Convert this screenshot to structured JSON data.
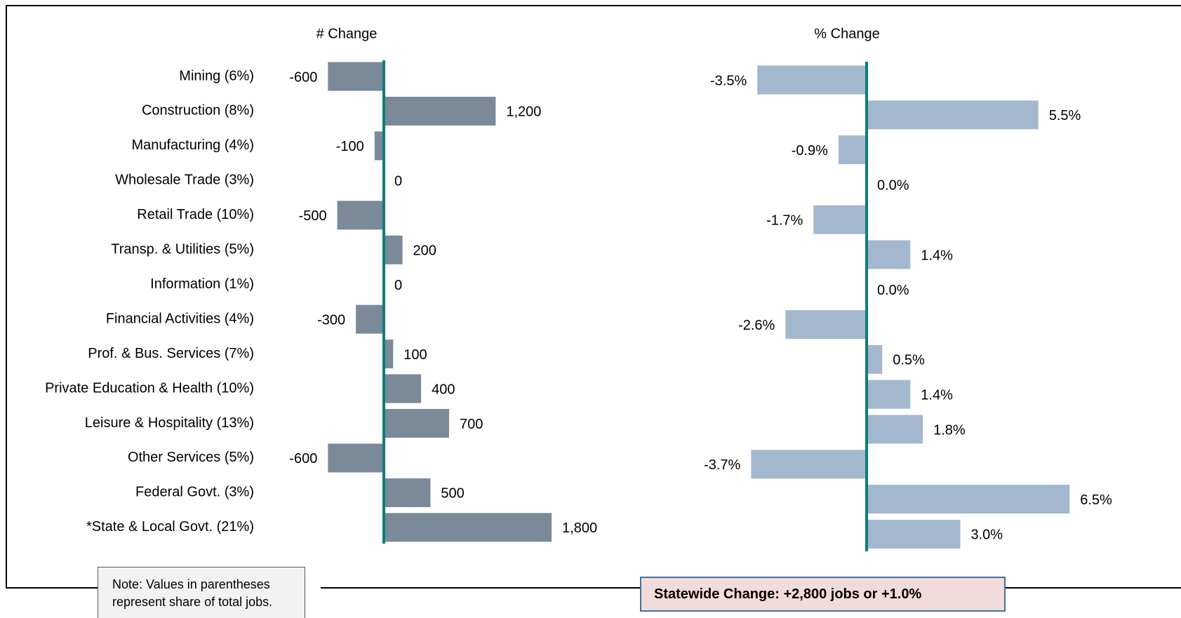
{
  "chart_data": [
    {
      "type": "barh",
      "title": "# Change",
      "color": "#7a8a99",
      "categories": [
        "Mining (6%)",
        "Construction (8%)",
        "Manufacturing (4%)",
        "Wholesale Trade (3%)",
        "Retail Trade (10%)",
        "Transp. & Utilities (5%)",
        "Information (1%)",
        "Financial Activities (4%)",
        "Prof. & Bus. Services (7%)",
        "Private Education & Health (10%)",
        "Leisure & Hospitality (13%)",
        "Other Services (5%)",
        "Federal Govt. (3%)",
        "*State & Local Govt. (21%)"
      ],
      "values": [
        -600,
        1200,
        -100,
        0,
        -500,
        200,
        0,
        -300,
        100,
        400,
        700,
        -600,
        500,
        1800
      ],
      "value_labels": [
        "-600",
        "1,200",
        "-100",
        "0",
        "-500",
        "200",
        "0",
        "-300",
        "100",
        "400",
        "700",
        "-600",
        "500",
        "1,800"
      ]
    },
    {
      "type": "barh",
      "title": "% Change",
      "color": "#a3b8cf",
      "values": [
        -3.5,
        5.5,
        -0.9,
        0.0,
        -1.7,
        1.4,
        0.0,
        -2.6,
        0.5,
        1.4,
        1.8,
        -3.7,
        6.5,
        3.0
      ],
      "value_labels": [
        "-3.5%",
        "5.5%",
        "-0.9%",
        "0.0%",
        "-1.7%",
        "1.4%",
        "0.0%",
        "-2.6%",
        "0.5%",
        "1.4%",
        "1.8%",
        "-3.7%",
        "6.5%",
        "3.0%"
      ]
    }
  ],
  "note": "Note: Values in parentheses represent share of total jobs.",
  "statewide": "Statewide Change: +2,800 jobs or +1.0%"
}
